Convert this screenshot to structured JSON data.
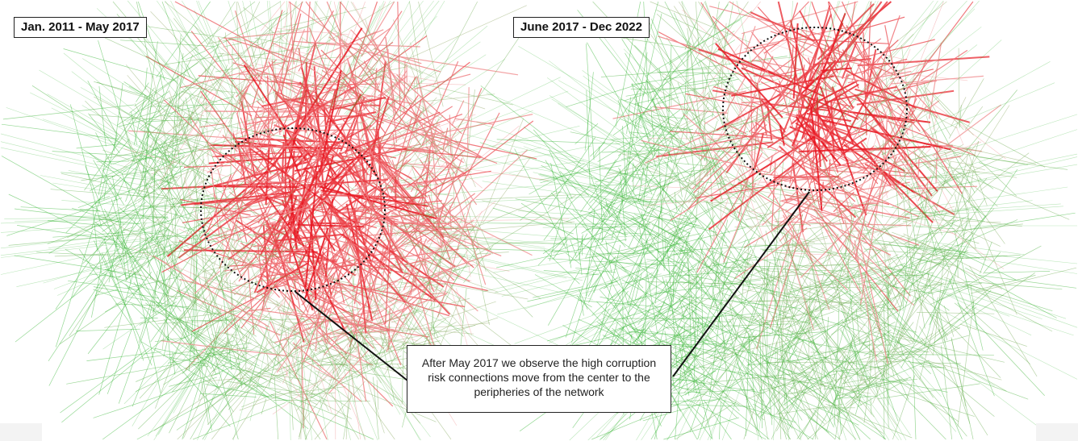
{
  "panels": [
    {
      "label": "Jan. 2011 - May 2017"
    },
    {
      "label": "June 2017 - Dec 2022"
    }
  ],
  "annotation": {
    "text": "After May 2017 we observe the high corruption risk connections move from the center to the peripheries of the network"
  },
  "colors": {
    "low_risk_edge": "#3db83a",
    "mid_edge": "#f2a7a7",
    "high_risk_edge": "#e8141e",
    "highlight_ellipse": "#111111",
    "callout_line": "#111111"
  }
}
